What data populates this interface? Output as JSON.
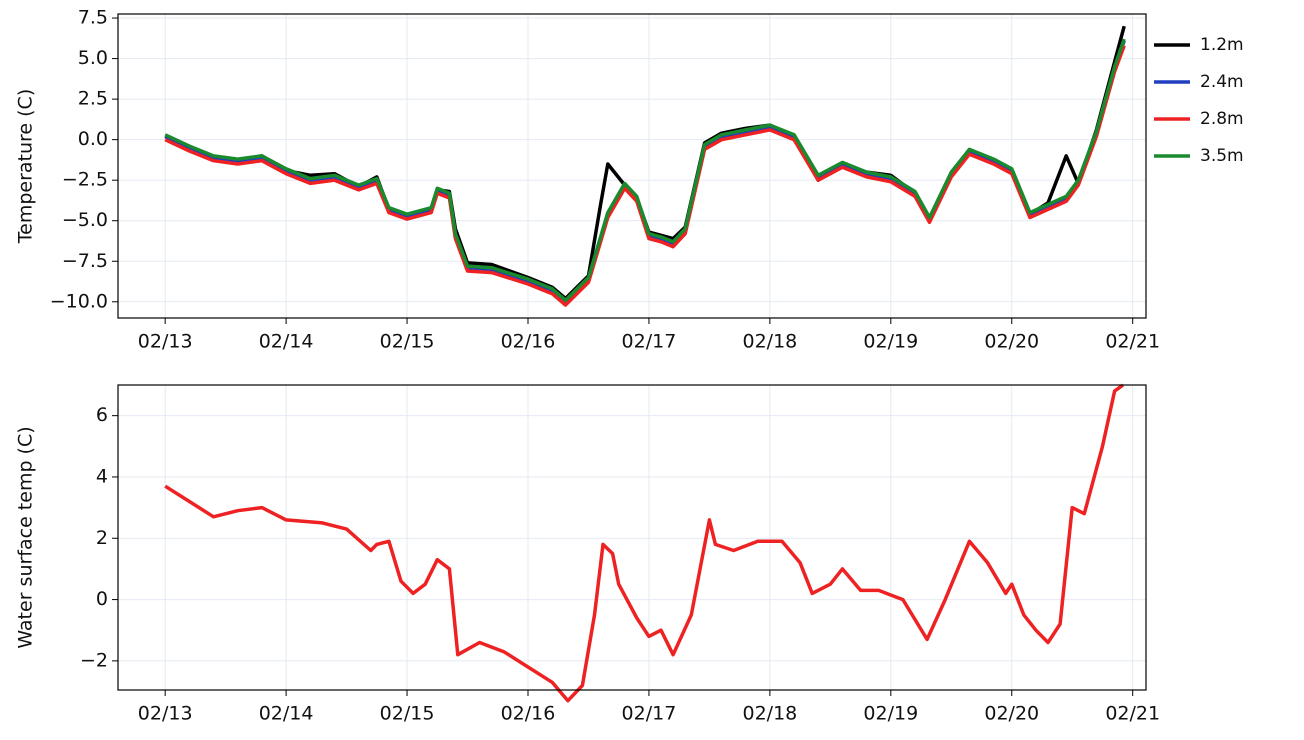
{
  "chart_data": [
    {
      "type": "line",
      "ylabel": "Temperature (C)",
      "x": [
        13.0,
        13.2,
        13.4,
        13.6,
        13.8,
        14.0,
        14.2,
        14.4,
        14.6,
        14.75,
        14.85,
        15.0,
        15.2,
        15.25,
        15.35,
        15.4,
        15.5,
        15.7,
        16.0,
        16.2,
        16.31,
        16.5,
        16.6,
        16.66,
        16.8,
        16.9,
        17.0,
        17.1,
        17.2,
        17.3,
        17.46,
        17.6,
        17.8,
        18.0,
        18.2,
        18.4,
        18.6,
        18.8,
        19.0,
        19.2,
        19.32,
        19.5,
        19.65,
        19.85,
        20.0,
        20.15,
        20.3,
        20.45,
        20.55,
        20.7,
        20.85,
        20.93
      ],
      "series": [
        {
          "name": "1.2m",
          "color": "#000000",
          "values": [
            0.2,
            -0.5,
            -1.1,
            -1.3,
            -1.0,
            -1.9,
            -2.2,
            -2.1,
            -2.9,
            -2.3,
            -4.3,
            -4.7,
            -4.3,
            -3.1,
            -3.2,
            -5.5,
            -7.6,
            -7.7,
            -8.5,
            -9.1,
            -9.8,
            -8.4,
            -4.0,
            -1.5,
            -2.8,
            -3.6,
            -5.7,
            -5.9,
            -6.1,
            -5.4,
            -0.2,
            0.4,
            0.7,
            0.9,
            0.2,
            -2.5,
            -1.5,
            -2.0,
            -2.2,
            -3.3,
            -4.9,
            -2.1,
            -0.7,
            -1.3,
            -1.9,
            -4.6,
            -3.9,
            -1.0,
            -2.7,
            0.6,
            4.8,
            7.0
          ]
        },
        {
          "name": "2.4m",
          "color": "#1f3fbf",
          "values": [
            0.2,
            -0.5,
            -1.1,
            -1.3,
            -1.1,
            -1.9,
            -2.5,
            -2.3,
            -2.9,
            -2.5,
            -4.3,
            -4.7,
            -4.3,
            -3.1,
            -3.4,
            -5.9,
            -7.9,
            -8.0,
            -8.7,
            -9.3,
            -10.0,
            -8.6,
            -6.1,
            -4.6,
            -2.8,
            -3.6,
            -5.9,
            -6.1,
            -6.4,
            -5.6,
            -0.4,
            0.2,
            0.5,
            0.8,
            0.2,
            -2.3,
            -1.5,
            -2.1,
            -2.4,
            -3.3,
            -4.9,
            -2.1,
            -0.7,
            -1.3,
            -1.9,
            -4.6,
            -4.1,
            -3.6,
            -2.6,
            0.4,
            4.4,
            6.1
          ]
        },
        {
          "name": "2.8m",
          "color": "#ee2222",
          "values": [
            0.0,
            -0.7,
            -1.3,
            -1.5,
            -1.3,
            -2.1,
            -2.7,
            -2.5,
            -3.1,
            -2.7,
            -4.5,
            -4.9,
            -4.5,
            -3.3,
            -3.6,
            -6.1,
            -8.1,
            -8.2,
            -8.9,
            -9.5,
            -10.2,
            -8.8,
            -6.3,
            -4.8,
            -3.0,
            -3.8,
            -6.1,
            -6.3,
            -6.6,
            -5.8,
            -0.6,
            0.0,
            0.3,
            0.6,
            0.0,
            -2.5,
            -1.7,
            -2.3,
            -2.6,
            -3.5,
            -5.1,
            -2.3,
            -0.9,
            -1.5,
            -2.1,
            -4.8,
            -4.3,
            -3.8,
            -2.8,
            0.2,
            4.2,
            5.8
          ]
        },
        {
          "name": "3.5m",
          "color": "#1a8a2e",
          "values": [
            0.3,
            -0.4,
            -1.0,
            -1.2,
            -1.0,
            -1.8,
            -2.4,
            -2.2,
            -2.8,
            -2.4,
            -4.2,
            -4.6,
            -4.2,
            -3.0,
            -3.3,
            -5.8,
            -7.8,
            -7.9,
            -8.6,
            -9.2,
            -9.9,
            -8.5,
            -6.0,
            -4.5,
            -2.7,
            -3.5,
            -5.8,
            -6.0,
            -6.3,
            -5.5,
            -0.3,
            0.3,
            0.6,
            0.9,
            0.3,
            -2.2,
            -1.4,
            -2.0,
            -2.3,
            -3.2,
            -4.8,
            -2.0,
            -0.6,
            -1.2,
            -1.8,
            -4.5,
            -4.0,
            -3.5,
            -2.5,
            0.5,
            4.5,
            6.2
          ]
        }
      ],
      "xlim": [
        12.61,
        21.11
      ],
      "xticks": [
        {
          "value": 13,
          "label": "02/13"
        },
        {
          "value": 14,
          "label": "02/14"
        },
        {
          "value": 15,
          "label": "02/15"
        },
        {
          "value": 16,
          "label": "02/16"
        },
        {
          "value": 17,
          "label": "02/17"
        },
        {
          "value": 18,
          "label": "02/18"
        },
        {
          "value": 19,
          "label": "02/19"
        },
        {
          "value": 20,
          "label": "02/20"
        },
        {
          "value": 21,
          "label": "02/21"
        }
      ],
      "ylim": [
        -11.0,
        7.75
      ],
      "yticks": [
        7.5,
        {
          "value": 5,
          "label": "5.0"
        },
        2.5,
        {
          "value": 0,
          "label": "0.0"
        },
        {
          "value": -2.5,
          "label": "−2.5"
        },
        {
          "value": -5,
          "label": "−5.0"
        },
        {
          "value": -7.5,
          "label": "−7.5"
        },
        {
          "value": -10,
          "label": "−10.0"
        }
      ],
      "grid": true,
      "legend": "outside right"
    },
    {
      "type": "line",
      "ylabel": "Water surface temp (C)",
      "x": [
        13.0,
        13.2,
        13.4,
        13.6,
        13.8,
        14.0,
        14.3,
        14.5,
        14.7,
        14.75,
        14.85,
        14.95,
        15.05,
        15.15,
        15.25,
        15.35,
        15.42,
        15.6,
        15.8,
        16.0,
        16.2,
        16.33,
        16.45,
        16.55,
        16.62,
        16.7,
        16.75,
        16.9,
        17.0,
        17.1,
        17.2,
        17.35,
        17.5,
        17.55,
        17.7,
        17.9,
        18.1,
        18.25,
        18.35,
        18.5,
        18.6,
        18.75,
        18.9,
        19.1,
        19.3,
        19.45,
        19.65,
        19.8,
        19.95,
        20.0,
        20.1,
        20.2,
        20.3,
        20.4,
        20.5,
        20.6,
        20.75,
        20.85,
        20.92
      ],
      "series": [
        {
          "name": "Water surface",
          "color": "#ee2222",
          "values": [
            3.7,
            3.2,
            2.7,
            2.9,
            3.0,
            2.6,
            2.5,
            2.3,
            1.6,
            1.8,
            1.9,
            0.6,
            0.2,
            0.5,
            1.3,
            1.0,
            -1.8,
            -1.4,
            -1.7,
            -2.2,
            -2.7,
            -3.3,
            -2.8,
            -0.5,
            1.8,
            1.5,
            0.5,
            -0.6,
            -1.2,
            -1.0,
            -1.8,
            -0.5,
            2.6,
            1.8,
            1.6,
            1.9,
            1.9,
            1.2,
            0.2,
            0.5,
            1.0,
            0.3,
            0.3,
            0.0,
            -1.3,
            0.0,
            1.9,
            1.2,
            0.2,
            0.5,
            -0.5,
            -1.0,
            -1.4,
            -0.8,
            3.0,
            2.8,
            5.0,
            6.8,
            7.0
          ]
        }
      ],
      "xlim": [
        12.61,
        21.11
      ],
      "xticks": [
        {
          "value": 13,
          "label": "02/13"
        },
        {
          "value": 14,
          "label": "02/14"
        },
        {
          "value": 15,
          "label": "02/15"
        },
        {
          "value": 16,
          "label": "02/16"
        },
        {
          "value": 17,
          "label": "02/17"
        },
        {
          "value": 18,
          "label": "02/18"
        },
        {
          "value": 19,
          "label": "02/19"
        },
        {
          "value": 20,
          "label": "02/20"
        },
        {
          "value": 21,
          "label": "02/21"
        }
      ],
      "ylim": [
        -2.95,
        7.0
      ],
      "yticks": [
        6,
        4,
        2,
        0,
        {
          "value": -2,
          "label": "−2"
        }
      ],
      "grid": true
    }
  ]
}
